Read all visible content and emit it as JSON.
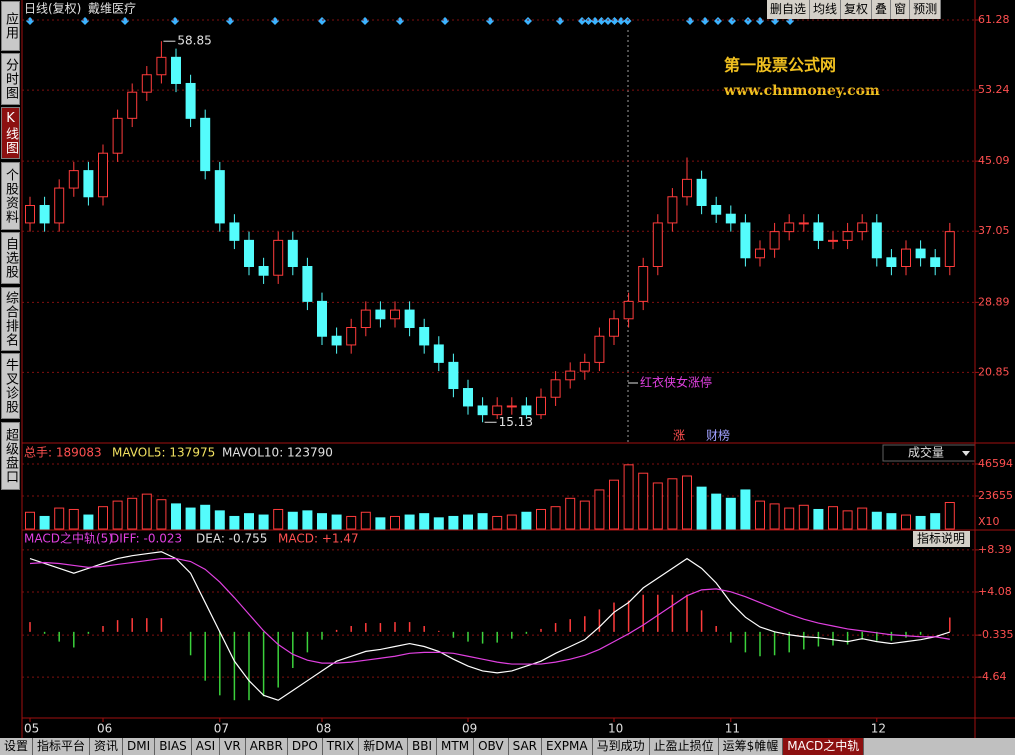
{
  "toolbar": {
    "title": "日线(复权)",
    "stock": "戴维医疗",
    "buttons": [
      "删自选",
      "均线",
      "复权",
      "叠",
      "窗",
      "预测"
    ]
  },
  "sidebar": [
    "应用",
    "分时图",
    "K线图",
    "个股资料",
    "自选股",
    "综合排名",
    "牛叉诊股",
    "超级盘口"
  ],
  "watermark": [
    "第一股票公式网",
    "www.chnmoney.com"
  ],
  "annotations": {
    "signal": "红衣侠女涨停",
    "badges": [
      "涨",
      "财榜"
    ]
  },
  "chart_data": [
    {
      "type": "candlestick",
      "up_color": "#ff3c3c",
      "down_color": "#54fcfc",
      "categories": [
        "05",
        null,
        null,
        null,
        null,
        "06",
        null,
        null,
        null,
        null,
        null,
        null,
        null,
        "07",
        null,
        null,
        null,
        null,
        null,
        null,
        "08",
        null,
        null,
        null,
        null,
        null,
        null,
        null,
        null,
        null,
        "09",
        null,
        null,
        null,
        null,
        null,
        null,
        null,
        null,
        null,
        "10",
        null,
        null,
        null,
        null,
        null,
        null,
        null,
        "11",
        null,
        null,
        null,
        null,
        null,
        null,
        null,
        null,
        null,
        "12",
        null,
        null,
        null,
        null,
        null
      ],
      "open": [
        38,
        40,
        38,
        42,
        44,
        41,
        46,
        50,
        53,
        55,
        57,
        54,
        50,
        44,
        38,
        36,
        33,
        32,
        36,
        33,
        29,
        25,
        24,
        26,
        28,
        27,
        28,
        26,
        24,
        22,
        19,
        17,
        16,
        17,
        17,
        16,
        18,
        20,
        21,
        22,
        25,
        27,
        29,
        33,
        38,
        41,
        43,
        40,
        39,
        38,
        34,
        35,
        37,
        38,
        38,
        36,
        36,
        37,
        38,
        34,
        33,
        35,
        34,
        33
      ],
      "high": [
        41,
        41,
        43,
        45,
        45,
        47,
        51,
        54,
        56,
        58.85,
        58,
        55,
        51,
        45,
        39,
        37,
        34,
        37,
        37,
        34,
        30,
        26,
        27,
        29,
        29,
        29,
        29,
        27,
        25,
        23,
        20,
        18,
        18,
        18,
        18,
        19,
        21,
        22,
        23,
        26,
        28,
        30,
        34,
        39,
        42,
        45.5,
        44,
        41,
        40,
        39,
        36,
        38,
        39,
        39,
        39,
        37,
        38,
        39,
        39,
        35,
        36,
        36,
        35,
        38
      ],
      "low": [
        37,
        37,
        37,
        41,
        40,
        40,
        45,
        49,
        52,
        54,
        53,
        49,
        43,
        37,
        35,
        32,
        31,
        31,
        32,
        28,
        24,
        23,
        23,
        25,
        26,
        26,
        25,
        23,
        21,
        18,
        16,
        15.13,
        15.5,
        16,
        15.5,
        15.5,
        17,
        19,
        20,
        21,
        24,
        26,
        28,
        32,
        37,
        40,
        39,
        38,
        37,
        33,
        33,
        34,
        36,
        37,
        35,
        35,
        35,
        36,
        33,
        32,
        32,
        33,
        32,
        32
      ],
      "close": [
        40,
        38,
        42,
        44,
        41,
        46,
        50,
        53,
        55,
        57,
        54,
        50,
        44,
        38,
        36,
        33,
        32,
        36,
        33,
        29,
        25,
        24,
        26,
        28,
        27,
        28,
        26,
        24,
        22,
        19,
        17,
        16,
        17,
        17,
        16,
        18,
        20,
        21,
        22,
        25,
        27,
        29,
        33,
        38,
        41,
        43,
        40,
        39,
        38,
        34,
        35,
        37,
        38,
        38,
        36,
        36,
        37,
        38,
        34,
        33,
        35,
        34,
        33,
        37
      ],
      "ylim": [
        12.75,
        62.2
      ],
      "yticks": [
        20.85,
        28.89,
        37.05,
        45.09,
        53.24,
        61.28
      ],
      "grid": true
    },
    {
      "type": "bar",
      "legend": [
        "总手: 189083",
        "MAVOL5: 137975",
        "MAVOL10: 123790"
      ],
      "selector": "成交量",
      "unit": "X10",
      "values": [
        12000,
        9000,
        15000,
        14000,
        10000,
        16000,
        20000,
        22000,
        25000,
        21000,
        18000,
        15000,
        17000,
        13000,
        9000,
        11000,
        10000,
        14000,
        12000,
        13000,
        11000,
        10000,
        9000,
        12000,
        8000,
        9000,
        10000,
        11000,
        8000,
        9000,
        10000,
        11000,
        9000,
        10000,
        12000,
        14000,
        16000,
        22000,
        20000,
        28000,
        35000,
        46000,
        40000,
        33000,
        36000,
        38000,
        30000,
        25000,
        22000,
        28000,
        20000,
        18000,
        15000,
        17000,
        14000,
        16000,
        13000,
        15000,
        12000,
        11000,
        10000,
        9000,
        11000,
        19000
      ],
      "ylim": [
        0,
        59500
      ],
      "yticks": [
        23655,
        46594
      ]
    },
    {
      "type": "line",
      "legend": [
        "MACD之中轨(5)",
        "DIFF: -0.023",
        "DEA: -0.755",
        "MACD: +1.47"
      ],
      "help": "指标说明",
      "series": [
        {
          "color": "#ffffff",
          "values": [
            7.5,
            7.0,
            6.5,
            6.0,
            6.5,
            7.0,
            7.5,
            7.8,
            8.0,
            8.2,
            7.5,
            6.0,
            3.0,
            0.0,
            -3.0,
            -5.0,
            -6.5,
            -7.0,
            -6.0,
            -5.0,
            -4.0,
            -3.0,
            -2.5,
            -2.0,
            -1.8,
            -1.5,
            -1.2,
            -1.5,
            -2.0,
            -2.8,
            -3.5,
            -4.0,
            -4.2,
            -4.0,
            -3.5,
            -3.0,
            -2.2,
            -1.5,
            -0.8,
            0.5,
            2.0,
            3.0,
            4.5,
            5.5,
            6.5,
            7.5,
            6.5,
            5.0,
            3.0,
            1.5,
            0.5,
            0.0,
            -0.3,
            -0.5,
            -0.6,
            -0.8,
            -1.0,
            -0.7,
            -1.0,
            -1.2,
            -1.0,
            -0.8,
            -0.5,
            -0.023
          ]
        },
        {
          "color": "#e040e0",
          "values": [
            7.0,
            7.1,
            7.0,
            6.8,
            6.6,
            6.7,
            6.9,
            7.1,
            7.3,
            7.5,
            7.5,
            7.2,
            6.4,
            5.1,
            3.5,
            1.8,
            0.1,
            -1.3,
            -2.3,
            -2.9,
            -3.2,
            -3.2,
            -3.1,
            -2.9,
            -2.7,
            -2.5,
            -2.2,
            -2.1,
            -2.1,
            -2.2,
            -2.5,
            -2.8,
            -3.1,
            -3.3,
            -3.3,
            -3.3,
            -3.1,
            -2.8,
            -2.4,
            -1.8,
            -1.0,
            -0.2,
            0.7,
            1.7,
            2.7,
            3.7,
            4.3,
            4.4,
            4.1,
            3.6,
            3.0,
            2.4,
            1.8,
            1.3,
            0.9,
            0.6,
            0.3,
            0.1,
            -0.1,
            -0.3,
            -0.4,
            -0.5,
            -0.5,
            -0.755
          ]
        }
      ],
      "bars": {
        "up_color": "#ff3c3c",
        "down_color": "#3cd23c",
        "values": [
          1.0,
          -0.2,
          -1.0,
          -1.6,
          -0.2,
          0.6,
          1.2,
          1.4,
          1.4,
          1.4,
          0.0,
          -2.4,
          -5.0,
          -6.5,
          -7.0,
          -7.0,
          -6.6,
          -5.7,
          -3.7,
          -2.1,
          -0.8,
          0.2,
          0.6,
          0.9,
          0.9,
          1.0,
          1.0,
          0.6,
          0.1,
          -0.6,
          -1.0,
          -1.2,
          -1.1,
          -0.7,
          -0.2,
          0.3,
          0.9,
          1.3,
          1.6,
          2.3,
          3.0,
          3.2,
          3.8,
          3.8,
          3.8,
          3.8,
          2.2,
          0.6,
          -1.1,
          -2.1,
          -2.5,
          -2.4,
          -2.1,
          -1.8,
          -1.5,
          -1.4,
          -1.3,
          -0.8,
          -0.9,
          -0.9,
          -0.6,
          -0.3,
          0.0,
          1.47
        ]
      },
      "ylim": [
        -8.82,
        10.12
      ],
      "yticks": [
        {
          "value": 8.39,
          "label": "+8.39"
        },
        {
          "value": 4.08,
          "label": "+4.08"
        },
        -0.335,
        -4.64
      ]
    }
  ],
  "tabs": [
    "设置",
    "指标平台",
    "资讯",
    "DMI",
    "BIAS",
    "ASI",
    "VR",
    "ARBR",
    "DPO",
    "TRIX",
    "新DMA",
    "BBI",
    "MTM",
    "OBV",
    "SAR",
    "EXPMA",
    "马到成功",
    "止盈止损位",
    "运筹$帷幄",
    "MACD之中轨"
  ]
}
